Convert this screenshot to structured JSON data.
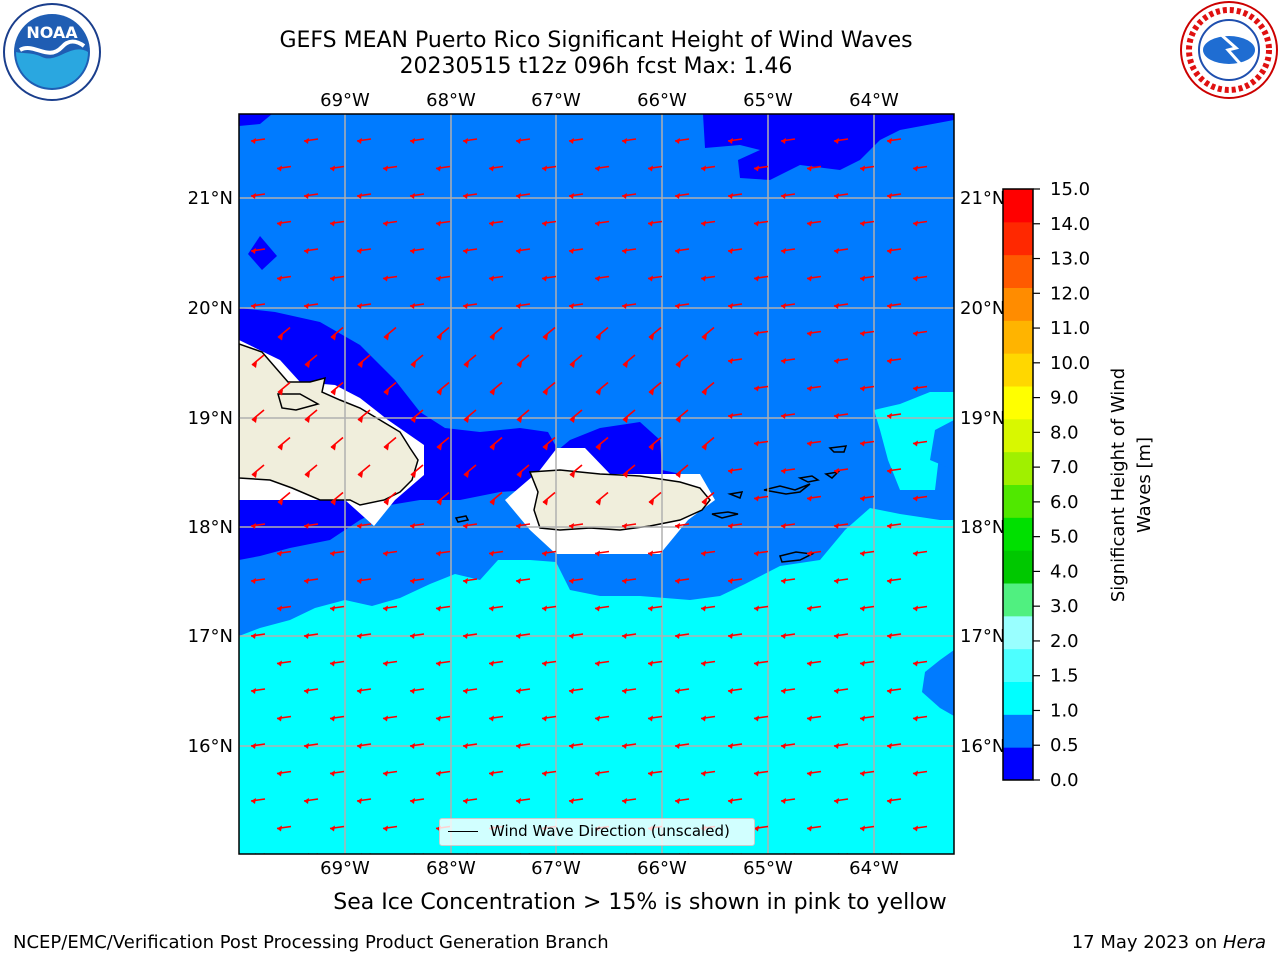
{
  "header": {
    "title_line1": "GEFS MEAN Puerto Rico Significant Height of Wind Waves",
    "title_line2": "20230515 t12z 096h fcst   Max: 1.46"
  },
  "logos": {
    "left": {
      "icon": "noaa-logo",
      "text": "NOAA"
    },
    "right": {
      "icon": "nws-logo",
      "text": "NATIONAL WEATHER SERVICE"
    }
  },
  "map": {
    "lon_labels": [
      "69°W",
      "68°W",
      "67°W",
      "66°W",
      "65°W",
      "64°W"
    ],
    "lat_labels": [
      "21°N",
      "20°N",
      "19°N",
      "18°N",
      "17°N",
      "16°N"
    ],
    "legend_label": "Wind Wave Direction (unscaled)",
    "arrow_color": "#ff0000",
    "land_color": "#f0eedc"
  },
  "colorbar": {
    "label": "Significant Height of Wind Waves [m]",
    "label_line1": "Significant Height of Wind",
    "label_line2": "Waves [m]",
    "ticks": [
      "15.0",
      "14.0",
      "13.0",
      "12.0",
      "11.0",
      "10.0",
      "9.0",
      "8.0",
      "7.0",
      "6.0",
      "5.0",
      "4.0",
      "3.0",
      "2.0",
      "1.5",
      "1.0",
      "0.5",
      "0.0"
    ],
    "colors": [
      "#0000ff",
      "#007bff",
      "#00ffff",
      "#4dffff",
      "#99ffff",
      "#50f080",
      "#00c800",
      "#00e000",
      "#50e800",
      "#a0f000",
      "#d8f800",
      "#ffff00",
      "#ffd700",
      "#ffb400",
      "#ff8c00",
      "#ff5a00",
      "#ff2800",
      "#ff0000"
    ]
  },
  "subtitle": "Sea Ice Concentration > 15% is shown in pink to yellow",
  "footer": {
    "left": "NCEP/EMC/Verification Post Processing Product Generation Branch",
    "right_date": "17 May 2023 on ",
    "right_host": "Hera"
  }
}
